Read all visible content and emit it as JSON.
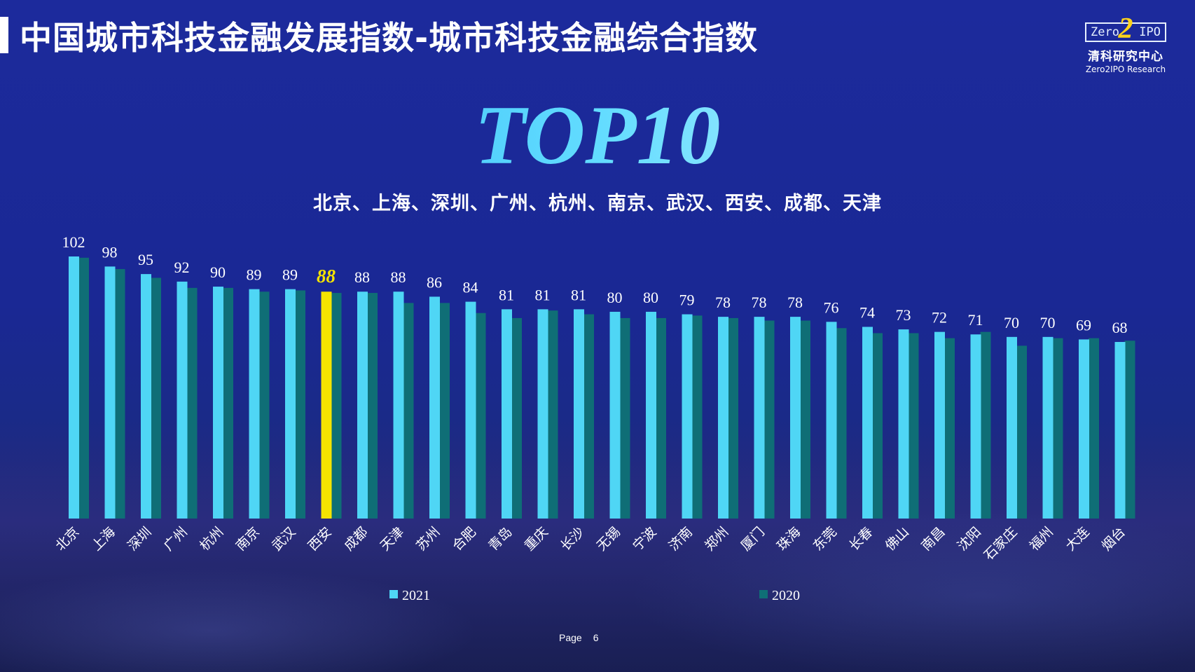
{
  "header": {
    "title": "中国城市科技金融发展指数-城市科技金融综合指数"
  },
  "logo": {
    "box_left": "Zero",
    "box_two": "2",
    "box_right": "IPO",
    "name_cn": "清科研究中心",
    "name_en": "Zero2IPO Research"
  },
  "headline": "TOP10",
  "subtitle": "北京、上海、深圳、广州、杭州、南京、武汉、西安、成都、天津",
  "footer": {
    "page_label": "Page",
    "page_number": "6"
  },
  "colors": {
    "series_2021": "#4fd6f5",
    "series_2020": "#0f6e76",
    "highlight": "#f5e400",
    "label": "#ffffff",
    "highlight_label": "#f5e400"
  },
  "chart_data": {
    "type": "bar",
    "categories": [
      "北京",
      "上海",
      "深圳",
      "广州",
      "杭州",
      "南京",
      "武汉",
      "西安",
      "成都",
      "天津",
      "苏州",
      "合肥",
      "青岛",
      "重庆",
      "长沙",
      "无锡",
      "宁波",
      "济南",
      "郑州",
      "厦门",
      "珠海",
      "东莞",
      "长春",
      "佛山",
      "南昌",
      "沈阳",
      "石家庄",
      "福州",
      "大连",
      "烟台"
    ],
    "series": [
      {
        "name": "2021",
        "values": [
          102,
          98,
          95,
          92,
          90,
          89,
          89,
          88,
          88,
          88,
          86,
          84,
          81,
          81,
          81,
          80,
          80,
          79,
          78,
          78,
          78,
          76,
          74,
          73,
          72,
          71,
          70,
          70,
          69,
          68
        ]
      },
      {
        "name": "2020",
        "values": [
          101.5,
          97,
          93.5,
          89.5,
          89.5,
          88,
          88.5,
          87.5,
          87.5,
          83.5,
          83.5,
          79.5,
          77.5,
          80.5,
          79,
          77.5,
          77.5,
          78.5,
          77.5,
          76.5,
          76.5,
          73.5,
          71.5,
          71.5,
          69.5,
          72,
          66.5,
          69.5,
          69.5,
          68.5
        ]
      }
    ],
    "highlight_category": "西安",
    "data_labels_series": "2021",
    "legend_position": "bottom",
    "grid": false,
    "ylim": [
      0,
      110
    ]
  }
}
